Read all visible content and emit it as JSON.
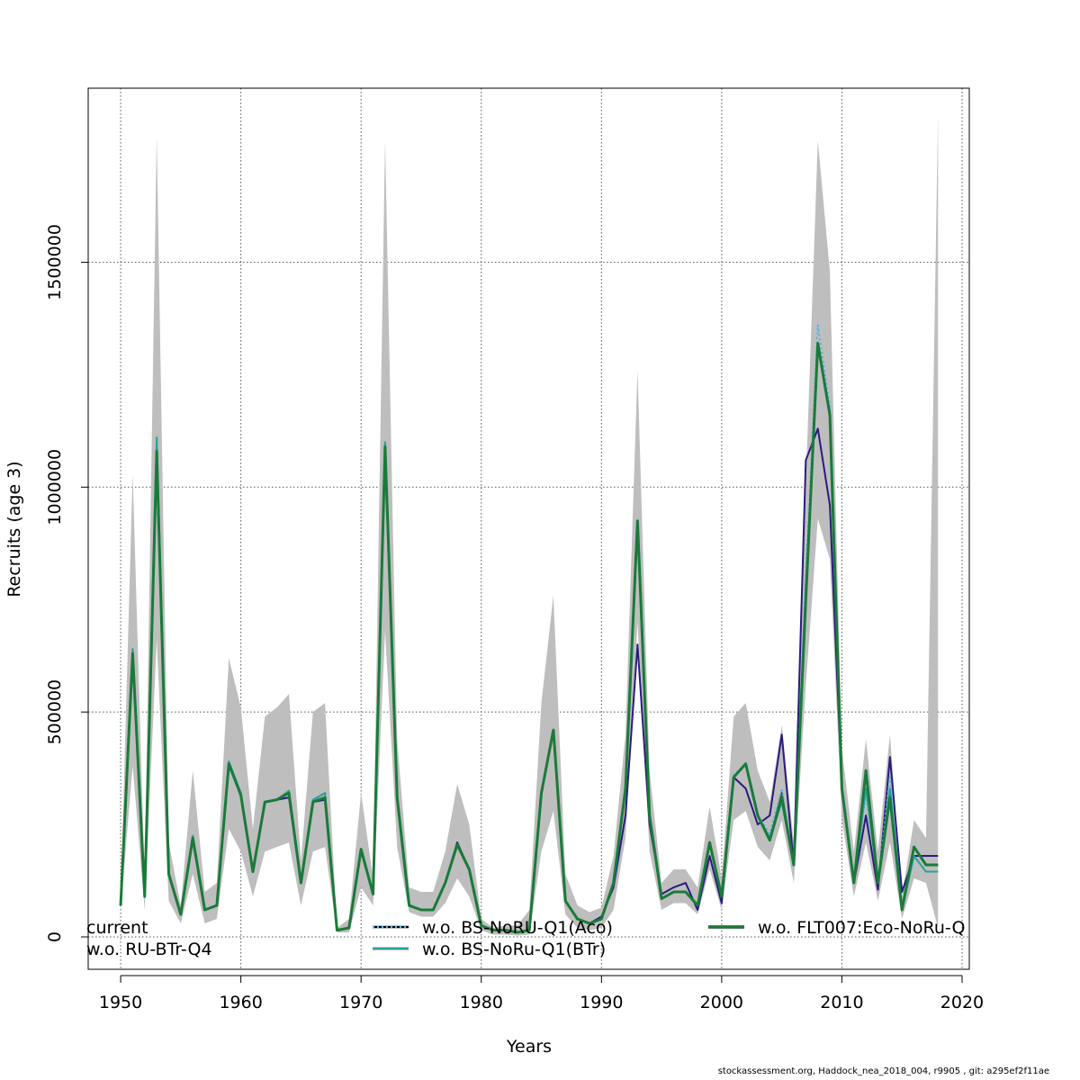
{
  "chart_data": {
    "type": "line",
    "xlabel": "Years",
    "ylabel": "Recruits (age 3)",
    "xlim": [
      1947.3,
      2020.6
    ],
    "ylim": [
      -72000,
      1887000
    ],
    "x_ticks": [
      1950,
      1960,
      1970,
      1980,
      1990,
      2000,
      2010,
      2020
    ],
    "y_ticks": [
      0,
      500000,
      1000000,
      1500000
    ],
    "y_tick_labels": [
      "0",
      "500000",
      "1000000",
      "1500000"
    ],
    "grid": true,
    "legend_placement": "bottom",
    "confidence_band": {
      "color": "#bebebe",
      "years": [
        1950,
        1951,
        1952,
        1953,
        1954,
        1955,
        1956,
        1957,
        1958,
        1959,
        1960,
        1961,
        1962,
        1963,
        1964,
        1965,
        1966,
        1967,
        1968,
        1969,
        1970,
        1971,
        1972,
        1973,
        1974,
        1975,
        1976,
        1977,
        1978,
        1979,
        1980,
        1981,
        1982,
        1983,
        1984,
        1985,
        1986,
        1987,
        1988,
        1989,
        1990,
        1991,
        1992,
        1993,
        1994,
        1995,
        1996,
        1997,
        1998,
        1999,
        2000,
        2001,
        2002,
        2003,
        2004,
        2005,
        2006,
        2007,
        2008,
        2009,
        2010,
        2011,
        2012,
        2013,
        2014,
        2015,
        2016,
        2017,
        2018
      ],
      "lower": [
        60000,
        380000,
        60000,
        660000,
        80000,
        30000,
        140000,
        30000,
        40000,
        240000,
        190000,
        90000,
        190000,
        200000,
        210000,
        70000,
        190000,
        200000,
        10000,
        10000,
        110000,
        70000,
        680000,
        200000,
        55000,
        45000,
        45000,
        75000,
        130000,
        90000,
        15000,
        5000,
        5000,
        3000,
        5000,
        190000,
        280000,
        50000,
        20000,
        15000,
        20000,
        60000,
        220000,
        700000,
        190000,
        60000,
        75000,
        75000,
        50000,
        150000,
        60000,
        260000,
        280000,
        200000,
        170000,
        260000,
        120000,
        560000,
        930000,
        840000,
        260000,
        90000,
        210000,
        80000,
        210000,
        40000,
        130000,
        120000,
        20000
      ],
      "upper": [
        80000,
        1030000,
        130000,
        1780000,
        210000,
        70000,
        370000,
        100000,
        120000,
        620000,
        510000,
        240000,
        490000,
        510000,
        540000,
        170000,
        500000,
        520000,
        20000,
        40000,
        320000,
        130000,
        1770000,
        440000,
        110000,
        100000,
        100000,
        190000,
        340000,
        250000,
        40000,
        20000,
        25000,
        25000,
        60000,
        520000,
        760000,
        140000,
        70000,
        55000,
        65000,
        180000,
        450000,
        1260000,
        370000,
        120000,
        150000,
        150000,
        110000,
        290000,
        130000,
        490000,
        520000,
        370000,
        300000,
        470000,
        210000,
        1010000,
        1770000,
        1480000,
        420000,
        190000,
        440000,
        190000,
        450000,
        90000,
        260000,
        220000,
        1830000
      ]
    },
    "series": [
      {
        "name": "current",
        "color": "#444444",
        "dash": "solid",
        "width": 2,
        "values": [
          70000,
          630000,
          90000,
          1080000,
          140000,
          50000,
          220000,
          60000,
          70000,
          385000,
          315000,
          145000,
          300000,
          305000,
          320000,
          120000,
          300000,
          310000,
          15000,
          20000,
          195000,
          95000,
          1090000,
          310000,
          70000,
          60000,
          60000,
          120000,
          205000,
          150000,
          25000,
          15000,
          15000,
          10000,
          15000,
          320000,
          460000,
          80000,
          40000,
          30000,
          40000,
          120000,
          330000,
          925000,
          270000,
          85000,
          100000,
          100000,
          70000,
          210000,
          90000,
          355000,
          385000,
          270000,
          215000,
          320000,
          160000,
          750000,
          1320000,
          1160000,
          330000,
          120000,
          370000,
          120000,
          310000,
          60000,
          200000,
          160000,
          160000
        ]
      },
      {
        "name": "w.o. RU-BTr-Q4",
        "color": "#2a1b7e",
        "dash": "solid",
        "width": 2,
        "values": [
          70000,
          630000,
          90000,
          1080000,
          140000,
          50000,
          220000,
          60000,
          70000,
          380000,
          320000,
          145000,
          300000,
          305000,
          310000,
          120000,
          300000,
          305000,
          15000,
          20000,
          190000,
          95000,
          1090000,
          310000,
          70000,
          60000,
          60000,
          120000,
          210000,
          150000,
          25000,
          15000,
          15000,
          10000,
          15000,
          320000,
          460000,
          80000,
          40000,
          30000,
          45000,
          110000,
          270000,
          650000,
          250000,
          95000,
          110000,
          120000,
          60000,
          180000,
          75000,
          355000,
          330000,
          250000,
          270000,
          450000,
          160000,
          1060000,
          1130000,
          960000,
          330000,
          120000,
          270000,
          105000,
          400000,
          100000,
          180000,
          180000,
          180000
        ]
      },
      {
        "name": "w.o. BS-NoRU-Q1(Aco)",
        "color": "#4ab4e6",
        "dash": "dotted",
        "width": 2,
        "values": [
          70000,
          640000,
          90000,
          1100000,
          140000,
          50000,
          225000,
          60000,
          70000,
          390000,
          320000,
          145000,
          300000,
          305000,
          320000,
          120000,
          300000,
          320000,
          15000,
          20000,
          195000,
          95000,
          1100000,
          310000,
          70000,
          60000,
          60000,
          120000,
          205000,
          150000,
          25000,
          15000,
          15000,
          10000,
          15000,
          320000,
          460000,
          80000,
          40000,
          30000,
          40000,
          120000,
          330000,
          925000,
          270000,
          85000,
          100000,
          100000,
          70000,
          210000,
          90000,
          360000,
          385000,
          270000,
          230000,
          330000,
          160000,
          800000,
          1360000,
          1180000,
          330000,
          120000,
          320000,
          120000,
          360000,
          60000,
          180000,
          145000,
          145000
        ]
      },
      {
        "name": "w.o. BS-NoRu-Q1(BTr)",
        "color": "#2aa198",
        "dash": "solid",
        "width": 2,
        "values": [
          70000,
          640000,
          90000,
          1110000,
          140000,
          50000,
          225000,
          60000,
          70000,
          390000,
          320000,
          145000,
          300000,
          305000,
          325000,
          120000,
          305000,
          320000,
          15000,
          20000,
          195000,
          95000,
          1100000,
          310000,
          70000,
          60000,
          60000,
          120000,
          205000,
          150000,
          25000,
          15000,
          15000,
          10000,
          15000,
          320000,
          460000,
          80000,
          40000,
          30000,
          40000,
          120000,
          330000,
          925000,
          270000,
          85000,
          100000,
          100000,
          70000,
          210000,
          90000,
          355000,
          385000,
          270000,
          220000,
          300000,
          160000,
          780000,
          1310000,
          1170000,
          330000,
          120000,
          330000,
          120000,
          330000,
          60000,
          180000,
          145000,
          145000
        ]
      },
      {
        "name": "w.o. FLT007:Eco-NoRu-Q",
        "color": "#1a7a3a",
        "dash": "solid",
        "width": 3,
        "values": [
          70000,
          630000,
          90000,
          1080000,
          140000,
          50000,
          220000,
          60000,
          70000,
          385000,
          315000,
          145000,
          300000,
          305000,
          320000,
          120000,
          300000,
          310000,
          15000,
          20000,
          195000,
          95000,
          1090000,
          310000,
          70000,
          60000,
          60000,
          120000,
          205000,
          150000,
          25000,
          15000,
          15000,
          10000,
          15000,
          320000,
          460000,
          80000,
          40000,
          30000,
          40000,
          120000,
          330000,
          925000,
          270000,
          85000,
          100000,
          100000,
          70000,
          210000,
          90000,
          355000,
          385000,
          270000,
          215000,
          310000,
          160000,
          750000,
          1320000,
          1160000,
          330000,
          120000,
          370000,
          120000,
          310000,
          60000,
          200000,
          160000,
          160000
        ]
      }
    ]
  },
  "footer": "stockassessment.org, Haddock_nea_2018_004, r9905 , git: a295ef2f11ae"
}
